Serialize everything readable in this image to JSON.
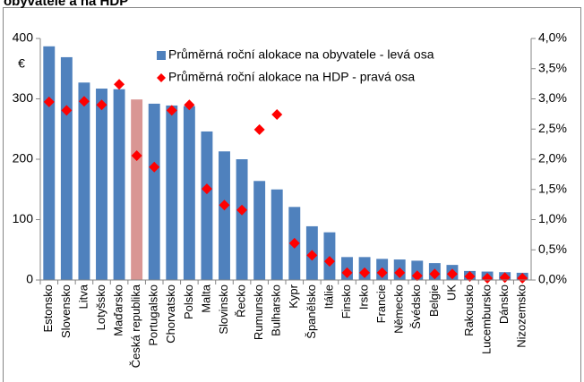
{
  "chart_data": {
    "type": "bar",
    "title": "obyvatele a na HDP",
    "ylabel": "€",
    "categories": [
      "Estonsko",
      "Slovensko",
      "Litva",
      "Lotyšsko",
      "Maďarsko",
      "Česká republika",
      "Portugalsko",
      "Chorvatsko",
      "Polsko",
      "Malta",
      "Slovinsko",
      "Řecko",
      "Rumunsko",
      "Bulharsko",
      "Kypr",
      "Španělsko",
      "Itálie",
      "Finsko",
      "Irsko",
      "Francie",
      "Německo",
      "Švédsko",
      "Belgie",
      "UK",
      "Rakousko",
      "Lucembursko",
      "Dánsko",
      "Nizozemsko"
    ],
    "series": [
      {
        "name": "Průměrná roční alokace na obyvatele - levá osa",
        "type": "bar",
        "color": "#4f81bd",
        "colors": [
          "#4f81bd",
          "#4f81bd",
          "#4f81bd",
          "#4f81bd",
          "#4f81bd",
          "#d99694",
          "#4f81bd",
          "#4f81bd",
          "#4f81bd",
          "#4f81bd",
          "#4f81bd",
          "#4f81bd",
          "#4f81bd",
          "#4f81bd",
          "#4f81bd",
          "#4f81bd",
          "#4f81bd",
          "#4f81bd",
          "#4f81bd",
          "#4f81bd",
          "#4f81bd",
          "#4f81bd",
          "#4f81bd",
          "#4f81bd",
          "#4f81bd",
          "#4f81bd",
          "#4f81bd",
          "#4f81bd"
        ],
        "values": [
          387,
          369,
          327,
          317,
          316,
          299,
          292,
          289,
          288,
          246,
          213,
          200,
          164,
          150,
          121,
          89,
          79,
          38,
          38,
          35,
          34,
          32,
          28,
          25,
          15,
          14,
          13,
          12
        ]
      },
      {
        "name": "Průměrná roční alokace na HDP - pravá osa",
        "type": "scatter",
        "axis": "y2",
        "color": "#ff0000",
        "values": [
          2.95,
          2.81,
          2.96,
          2.9,
          3.24,
          2.06,
          1.87,
          2.81,
          2.9,
          1.51,
          1.24,
          1.16,
          2.49,
          2.74,
          0.61,
          0.41,
          0.31,
          0.12,
          0.12,
          0.12,
          0.12,
          0.07,
          0.1,
          0.1,
          0.06,
          0.03,
          0.04,
          0.03
        ]
      }
    ],
    "ylim": [
      0,
      400
    ],
    "yticks": [
      0,
      100,
      200,
      300,
      400
    ],
    "y2lim": [
      0,
      4
    ],
    "y2ticks": [
      {
        "value": 0,
        "label": "0,0%"
      },
      {
        "value": 0.5,
        "label": "0,5%"
      },
      {
        "value": 1,
        "label": "1,0%"
      },
      {
        "value": 1.5,
        "label": "1,5%"
      },
      {
        "value": 2,
        "label": "2,0%"
      },
      {
        "value": 2.5,
        "label": "2,5%"
      },
      {
        "value": 3,
        "label": "3,0%"
      },
      {
        "value": 3.5,
        "label": "3,5%"
      },
      {
        "value": 4,
        "label": "4,0%"
      }
    ],
    "grid": false,
    "legend": "top-right"
  }
}
